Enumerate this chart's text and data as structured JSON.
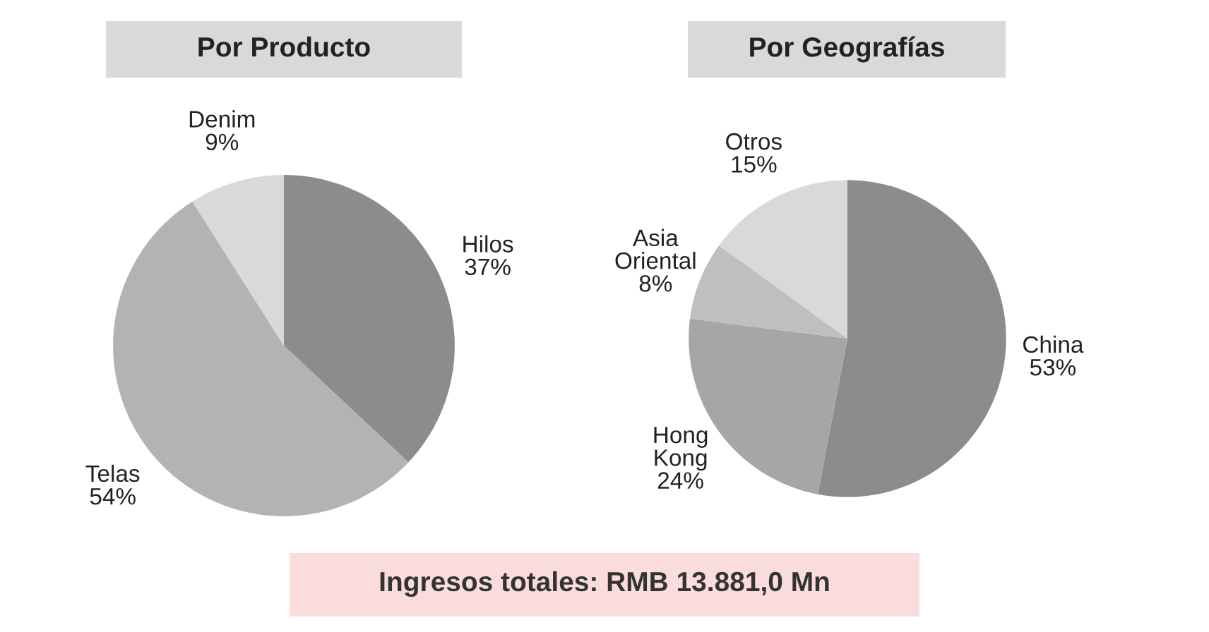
{
  "chart_data": [
    {
      "type": "pie",
      "title": "Por Producto",
      "categories": [
        "Hilos",
        "Telas",
        "Denim"
      ],
      "values": [
        37,
        54,
        9
      ],
      "colors": [
        "#8c8c8c",
        "#b3b3b3",
        "#d9d9d9"
      ],
      "value_labels": [
        "37%",
        "54%",
        "9%"
      ],
      "annotations": [
        "Ingresos totales: RMB 13.881,0 Mn"
      ]
    },
    {
      "type": "pie",
      "title": "Por Geografías",
      "categories": [
        "China",
        "Hong Kong",
        "Asia Oriental",
        "Otros"
      ],
      "values": [
        53,
        24,
        8,
        15
      ],
      "colors": [
        "#8c8c8c",
        "#a6a6a6",
        "#bfbfbf",
        "#d9d9d9"
      ],
      "value_labels": [
        "53%",
        "24%",
        "8%",
        "15%"
      ]
    }
  ]
}
